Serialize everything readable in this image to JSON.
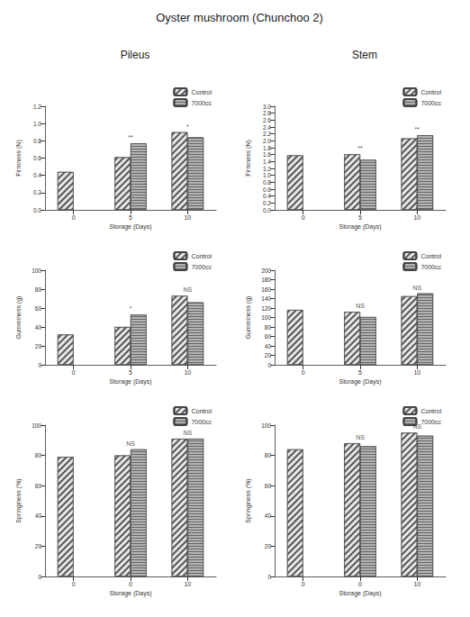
{
  "title": "Oyster mushroom (Chunchoo 2)",
  "panel_headers": [
    "Pileus",
    "Stem"
  ],
  "chart_data": [
    {
      "type": "bar",
      "xlabel": "Storage (Days)",
      "ylabel": "Firmness (N)",
      "categories": [
        "0",
        "5",
        "10"
      ],
      "series": [
        {
          "name": "Control",
          "color": "#e6e6e6",
          "values": [
            0.44,
            0.61,
            0.9
          ]
        },
        {
          "name": "7000cc",
          "color": "#b3b3b3",
          "values": [
            null,
            0.77,
            0.84
          ]
        }
      ],
      "annotations": [
        null,
        "**",
        "*"
      ],
      "ylim": [
        0,
        1.2
      ],
      "yticks": [
        {
          "value": 0,
          "label": "0.0"
        },
        0.2,
        0.4,
        0.6,
        0.8,
        {
          "value": 1,
          "label": "1.0"
        },
        1.2
      ],
      "legend": "upper right",
      "grid": false
    },
    {
      "type": "bar",
      "xlabel": "Storage (Days)",
      "ylabel": "Firmness (N)",
      "categories": [
        "0",
        "5",
        "10"
      ],
      "series": [
        {
          "name": "Control",
          "color": "#e6e6e6",
          "values": [
            1.58,
            1.61,
            2.07
          ]
        },
        {
          "name": "7000cc",
          "color": "#b3b3b3",
          "values": [
            null,
            1.45,
            2.16
          ]
        }
      ],
      "annotations": [
        null,
        "**",
        "**"
      ],
      "ylim": [
        0,
        3
      ],
      "yticks": [
        {
          "value": 0,
          "label": "0.0"
        },
        0.2,
        0.4,
        0.6,
        0.8,
        {
          "value": 1,
          "label": "1.0"
        },
        1.2,
        1.4,
        1.6,
        1.8,
        {
          "value": 2,
          "label": "2.0"
        },
        2.2,
        2.4,
        2.6,
        2.8,
        {
          "value": 3,
          "label": "3.0"
        }
      ],
      "legend": "upper right",
      "grid": false
    },
    {
      "type": "bar",
      "xlabel": "Storage (Days)",
      "ylabel": "Gumminess (g)",
      "categories": [
        "0",
        "5",
        "10"
      ],
      "series": [
        {
          "name": "Control",
          "color": "#e6e6e6",
          "values": [
            32,
            40,
            73
          ]
        },
        {
          "name": "7000cc",
          "color": "#b3b3b3",
          "values": [
            null,
            53,
            66
          ]
        }
      ],
      "annotations": [
        null,
        "*",
        "NS"
      ],
      "ylim": [
        0,
        100
      ],
      "yticks": [
        0,
        20,
        40,
        60,
        80,
        100
      ],
      "legend": "upper right",
      "grid": false
    },
    {
      "type": "bar",
      "xlabel": "Storage (Days)",
      "ylabel": "Gumminess (g)",
      "categories": [
        "0",
        "5",
        "10"
      ],
      "series": [
        {
          "name": "Control",
          "color": "#e6e6e6",
          "values": [
            116,
            112,
            145
          ]
        },
        {
          "name": "7000cc",
          "color": "#b3b3b3",
          "values": [
            null,
            101,
            151
          ]
        }
      ],
      "annotations": [
        null,
        "NS",
        "NS"
      ],
      "ylim": [
        0,
        200
      ],
      "yticks": [
        0,
        20,
        40,
        60,
        80,
        100,
        120,
        140,
        160,
        180,
        200
      ],
      "legend": "upper right",
      "grid": false
    },
    {
      "type": "bar",
      "xlabel": "Storage (Days)",
      "ylabel": "Springiness (%)",
      "categories": [
        "0",
        "0",
        "10"
      ],
      "series": [
        {
          "name": "Control",
          "color": "#e6e6e6",
          "values": [
            79,
            80,
            91
          ]
        },
        {
          "name": "7000cc",
          "color": "#b3b3b3",
          "values": [
            null,
            84,
            91
          ]
        }
      ],
      "annotations": [
        null,
        "NS",
        "NS"
      ],
      "ylim": [
        0,
        100
      ],
      "yticks": [
        0,
        20,
        40,
        60,
        80,
        100
      ],
      "legend": "upper right",
      "grid": false
    },
    {
      "type": "bar",
      "xlabel": "Storage (Days)",
      "ylabel": "Springiness (%)",
      "categories": [
        "0",
        "0",
        "10"
      ],
      "series": [
        {
          "name": "Control",
          "color": "#e6e6e6",
          "values": [
            84,
            88,
            95
          ]
        },
        {
          "name": "7000cc",
          "color": "#b3b3b3",
          "values": [
            null,
            86,
            93
          ]
        }
      ],
      "annotations": [
        null,
        "NS",
        "NS"
      ],
      "ylim": [
        0,
        100
      ],
      "yticks": [
        0,
        20,
        40,
        60,
        80,
        100
      ],
      "legend": "upper right",
      "grid": false
    }
  ]
}
